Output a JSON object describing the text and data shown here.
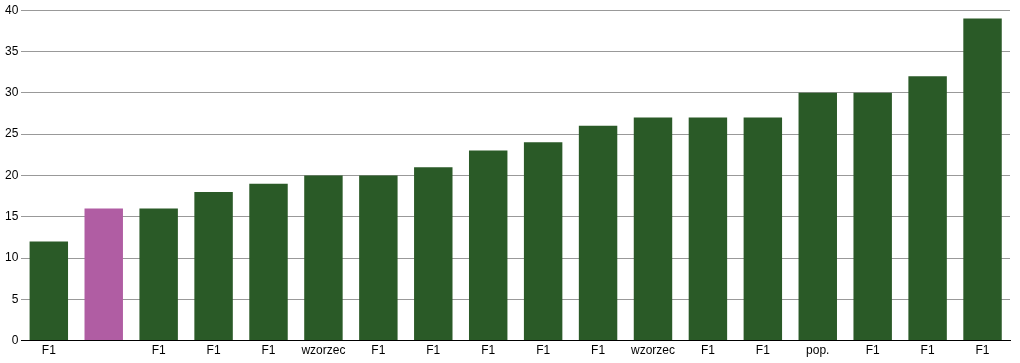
{
  "chart_data": {
    "type": "bar",
    "categories": [
      "F1",
      null,
      "F1",
      "F1",
      "F1",
      "wzorzec",
      "F1",
      "F1",
      "F1",
      "F1",
      "F1",
      "wzorzec",
      "F1",
      "F1",
      "pop.",
      "F1",
      "F1",
      "F1"
    ],
    "values": [
      12,
      16,
      16,
      18,
      19,
      20,
      20,
      21,
      23,
      24,
      26,
      27,
      27,
      27,
      30,
      30,
      32,
      39
    ],
    "colors": [
      "#2a5a27",
      "#b05da3",
      "#2a5a27",
      "#2a5a27",
      "#2a5a27",
      "#2a5a27",
      "#2a5a27",
      "#2a5a27",
      "#2a5a27",
      "#2a5a27",
      "#2a5a27",
      "#2a5a27",
      "#2a5a27",
      "#2a5a27",
      "#2a5a27",
      "#2a5a27",
      "#2a5a27",
      "#2a5a27"
    ],
    "ylim": [
      0,
      40
    ],
    "yticks": [
      0,
      5,
      10,
      15,
      20,
      25,
      30,
      35,
      40
    ],
    "grid": "y",
    "legend": false
  }
}
